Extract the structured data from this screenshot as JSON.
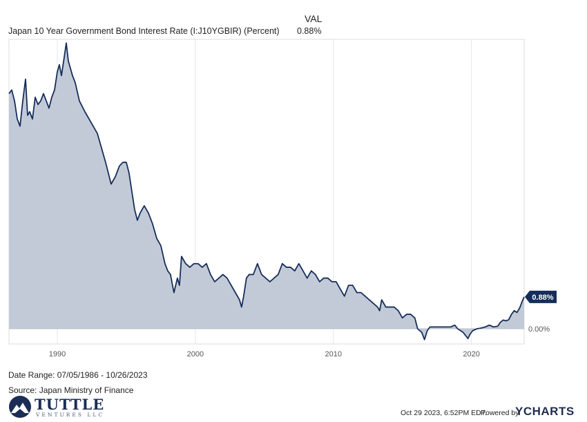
{
  "legend": {
    "header": "VAL",
    "series_label": "Japan 10 Year Government Bond Interest Rate (I:J10YGBIR) (Percent)",
    "series_value": "0.88%"
  },
  "chart_data": {
    "type": "area",
    "x_unit": "year",
    "y_unit": "percent",
    "xlim": [
      1986.5,
      2023.82
    ],
    "ylim": [
      -0.42,
      8.0
    ],
    "x_ticks": [
      1990,
      2000,
      2010,
      2020
    ],
    "x_tick_labels": [
      "1990",
      "2000",
      "2010",
      "2020"
    ],
    "y_reference_label": "0.00%",
    "last_value_label": "0.88%",
    "grid": "vertical",
    "series": [
      {
        "color": "#152d59",
        "fill": "#c3cad7",
        "points": [
          [
            1986.5,
            6.5
          ],
          [
            1986.7,
            6.6
          ],
          [
            1986.9,
            6.3
          ],
          [
            1987.1,
            5.8
          ],
          [
            1987.3,
            5.6
          ],
          [
            1987.5,
            6.3
          ],
          [
            1987.7,
            6.9
          ],
          [
            1987.85,
            5.9
          ],
          [
            1988.0,
            6.0
          ],
          [
            1988.2,
            5.8
          ],
          [
            1988.4,
            6.4
          ],
          [
            1988.6,
            6.2
          ],
          [
            1988.8,
            6.3
          ],
          [
            1989.0,
            6.5
          ],
          [
            1989.2,
            6.3
          ],
          [
            1989.4,
            6.1
          ],
          [
            1989.6,
            6.4
          ],
          [
            1989.8,
            6.6
          ],
          [
            1990.0,
            7.1
          ],
          [
            1990.15,
            7.3
          ],
          [
            1990.3,
            7.0
          ],
          [
            1990.5,
            7.5
          ],
          [
            1990.65,
            7.9
          ],
          [
            1990.8,
            7.4
          ],
          [
            1990.95,
            7.2
          ],
          [
            1991.1,
            7.0
          ],
          [
            1991.3,
            6.8
          ],
          [
            1991.6,
            6.3
          ],
          [
            1992.0,
            6.0
          ],
          [
            1992.3,
            5.8
          ],
          [
            1992.6,
            5.6
          ],
          [
            1992.9,
            5.4
          ],
          [
            1993.2,
            5.0
          ],
          [
            1993.5,
            4.6
          ],
          [
            1993.9,
            4.0
          ],
          [
            1994.2,
            4.2
          ],
          [
            1994.5,
            4.5
          ],
          [
            1994.75,
            4.6
          ],
          [
            1995.0,
            4.6
          ],
          [
            1995.2,
            4.3
          ],
          [
            1995.4,
            3.8
          ],
          [
            1995.6,
            3.3
          ],
          [
            1995.8,
            3.0
          ],
          [
            1996.0,
            3.2
          ],
          [
            1996.3,
            3.4
          ],
          [
            1996.6,
            3.2
          ],
          [
            1996.9,
            2.9
          ],
          [
            1997.2,
            2.5
          ],
          [
            1997.5,
            2.3
          ],
          [
            1997.8,
            1.8
          ],
          [
            1998.0,
            1.6
          ],
          [
            1998.2,
            1.5
          ],
          [
            1998.45,
            1.0
          ],
          [
            1998.7,
            1.4
          ],
          [
            1998.85,
            1.2
          ],
          [
            1999.0,
            2.0
          ],
          [
            1999.3,
            1.8
          ],
          [
            1999.6,
            1.7
          ],
          [
            1999.9,
            1.8
          ],
          [
            2000.2,
            1.8
          ],
          [
            2000.5,
            1.7
          ],
          [
            2000.8,
            1.8
          ],
          [
            2001.1,
            1.5
          ],
          [
            2001.4,
            1.3
          ],
          [
            2001.7,
            1.4
          ],
          [
            2002.0,
            1.5
          ],
          [
            2002.3,
            1.4
          ],
          [
            2002.6,
            1.2
          ],
          [
            2002.9,
            1.0
          ],
          [
            2003.2,
            0.8
          ],
          [
            2003.35,
            0.6
          ],
          [
            2003.5,
            0.9
          ],
          [
            2003.7,
            1.4
          ],
          [
            2003.9,
            1.5
          ],
          [
            2004.2,
            1.5
          ],
          [
            2004.5,
            1.8
          ],
          [
            2004.8,
            1.5
          ],
          [
            2005.1,
            1.4
          ],
          [
            2005.4,
            1.3
          ],
          [
            2005.7,
            1.4
          ],
          [
            2006.0,
            1.5
          ],
          [
            2006.3,
            1.8
          ],
          [
            2006.6,
            1.7
          ],
          [
            2006.9,
            1.7
          ],
          [
            2007.2,
            1.6
          ],
          [
            2007.5,
            1.8
          ],
          [
            2007.8,
            1.6
          ],
          [
            2008.1,
            1.4
          ],
          [
            2008.4,
            1.6
          ],
          [
            2008.7,
            1.5
          ],
          [
            2009.0,
            1.3
          ],
          [
            2009.3,
            1.4
          ],
          [
            2009.6,
            1.4
          ],
          [
            2009.9,
            1.3
          ],
          [
            2010.2,
            1.3
          ],
          [
            2010.5,
            1.1
          ],
          [
            2010.8,
            0.9
          ],
          [
            2011.1,
            1.2
          ],
          [
            2011.4,
            1.2
          ],
          [
            2011.7,
            1.0
          ],
          [
            2012.0,
            1.0
          ],
          [
            2012.3,
            0.9
          ],
          [
            2012.6,
            0.8
          ],
          [
            2012.9,
            0.7
          ],
          [
            2013.2,
            0.6
          ],
          [
            2013.35,
            0.5
          ],
          [
            2013.5,
            0.8
          ],
          [
            2013.8,
            0.6
          ],
          [
            2014.1,
            0.6
          ],
          [
            2014.4,
            0.6
          ],
          [
            2014.7,
            0.5
          ],
          [
            2015.0,
            0.3
          ],
          [
            2015.3,
            0.4
          ],
          [
            2015.6,
            0.4
          ],
          [
            2015.9,
            0.3
          ],
          [
            2016.1,
            0.0
          ],
          [
            2016.4,
            -0.1
          ],
          [
            2016.6,
            -0.3
          ],
          [
            2016.8,
            -0.05
          ],
          [
            2017.0,
            0.05
          ],
          [
            2017.3,
            0.05
          ],
          [
            2017.6,
            0.05
          ],
          [
            2017.9,
            0.05
          ],
          [
            2018.2,
            0.05
          ],
          [
            2018.5,
            0.05
          ],
          [
            2018.8,
            0.1
          ],
          [
            2019.0,
            0.0
          ],
          [
            2019.2,
            -0.05
          ],
          [
            2019.4,
            -0.1
          ],
          [
            2019.6,
            -0.2
          ],
          [
            2019.75,
            -0.27
          ],
          [
            2019.9,
            -0.15
          ],
          [
            2020.1,
            -0.05
          ],
          [
            2020.4,
            0.0
          ],
          [
            2020.7,
            0.02
          ],
          [
            2021.0,
            0.05
          ],
          [
            2021.3,
            0.1
          ],
          [
            2021.6,
            0.05
          ],
          [
            2021.9,
            0.07
          ],
          [
            2022.1,
            0.18
          ],
          [
            2022.3,
            0.24
          ],
          [
            2022.5,
            0.22
          ],
          [
            2022.7,
            0.25
          ],
          [
            2022.9,
            0.4
          ],
          [
            2023.1,
            0.5
          ],
          [
            2023.3,
            0.45
          ],
          [
            2023.5,
            0.58
          ],
          [
            2023.7,
            0.78
          ],
          [
            2023.82,
            0.88
          ]
        ]
      }
    ]
  },
  "footer": {
    "date_range": "Date Range: 07/05/1986 - 10/26/2023",
    "source": "Source: Japan Ministry of Finance",
    "logo_word": "TUTTLE",
    "logo_sub": "VENTURES LLC",
    "timestamp": "Oct 29 2023, 6:52PM EDT.",
    "powered_by": "Powered by",
    "brand": "YCHARTS"
  }
}
